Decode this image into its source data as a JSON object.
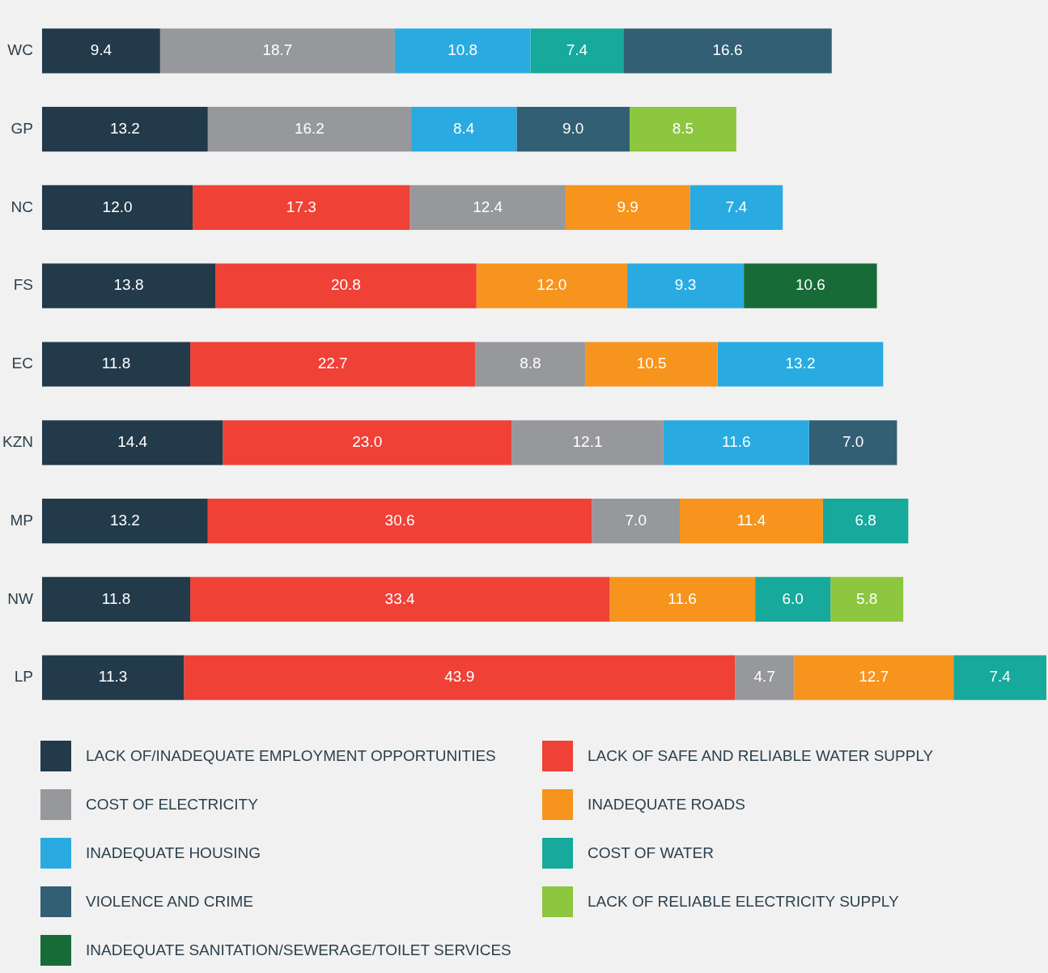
{
  "chart_data": {
    "type": "bar",
    "orientation": "horizontal",
    "stacked": true,
    "legend": "bottom",
    "grid": false,
    "tick_labels": "y",
    "categories": [
      "WC",
      "GP",
      "NC",
      "FS",
      "EC",
      "KZN",
      "MP",
      "NW",
      "LP"
    ],
    "series": [
      {
        "name": "LACK OF/INADEQUATE EMPLOYMENT OPPORTUNITIES",
        "color": "#223a4a",
        "values": [
          9.4,
          13.2,
          12.0,
          13.8,
          11.8,
          14.4,
          13.2,
          11.8,
          11.3
        ],
        "value_labels": [
          "9.4",
          "13.2",
          "12.0",
          "13.8",
          "11.8",
          "14.4",
          "13.2",
          "11.8",
          "11.3"
        ]
      },
      {
        "name": "LACK OF SAFE AND RELIABLE WATER SUPPLY",
        "color": "#ef4136",
        "values": [
          null,
          null,
          17.3,
          20.8,
          22.7,
          23.0,
          30.6,
          33.4,
          43.9
        ],
        "value_labels": [
          null,
          null,
          "17.3",
          "20.8",
          "22.7",
          "23.0",
          "30.6",
          "33.4",
          "43.9"
        ]
      },
      {
        "name": "COST OF ELECTRICITY",
        "color": "#97989c",
        "values": [
          18.7,
          16.2,
          12.4,
          null,
          8.8,
          12.1,
          7.0,
          null,
          4.7
        ],
        "value_labels": [
          "18.7",
          "16.2",
          "12.4",
          null,
          "8.8",
          "12.1",
          "7.0",
          null,
          "4.7"
        ]
      },
      {
        "name": "INADEQUATE ROADS",
        "color": "#f7941d",
        "values": [
          null,
          null,
          9.9,
          12.0,
          10.5,
          null,
          11.4,
          11.6,
          12.7
        ],
        "value_labels": [
          null,
          null,
          "9.9",
          "12.0",
          "10.5",
          null,
          "11.4",
          "11.6",
          "12.7"
        ]
      },
      {
        "name": "INADEQUATE HOUSING",
        "color": "#29abe2",
        "values": [
          10.8,
          8.4,
          7.4,
          9.3,
          13.2,
          11.6,
          null,
          null,
          null
        ],
        "value_labels": [
          "10.8",
          "8.4",
          "7.4",
          "9.3",
          "13.2",
          "11.6",
          null,
          null,
          null
        ]
      },
      {
        "name": "COST OF WATER",
        "color": "#16a99c",
        "values": [
          7.4,
          null,
          null,
          null,
          null,
          null,
          6.8,
          6.0,
          7.4
        ],
        "value_labels": [
          "7.4",
          null,
          null,
          null,
          null,
          null,
          "6.8",
          "6.0",
          "7.4"
        ]
      },
      {
        "name": "VIOLENCE AND CRIME",
        "color": "#325f74",
        "values": [
          16.6,
          9.0,
          null,
          null,
          null,
          7.0,
          null,
          null,
          null
        ],
        "value_labels": [
          "16.6",
          "9.0",
          null,
          null,
          null,
          "7.0",
          null,
          null,
          null
        ]
      },
      {
        "name": "LACK OF RELIABLE ELECTRICITY SUPPLY",
        "color": "#8dc63f",
        "values": [
          null,
          8.5,
          null,
          null,
          null,
          null,
          null,
          5.8,
          null
        ],
        "value_labels": [
          null,
          "8.5",
          null,
          null,
          null,
          null,
          null,
          "5.8",
          null
        ]
      },
      {
        "name": "INADEQUATE SANITATION/SEWERAGE/TOILET SERVICES",
        "color": "#176b37",
        "values": [
          null,
          null,
          null,
          10.6,
          null,
          null,
          null,
          null,
          null
        ],
        "value_labels": [
          null,
          null,
          null,
          "10.6",
          null,
          null,
          null,
          null,
          null
        ]
      }
    ]
  }
}
